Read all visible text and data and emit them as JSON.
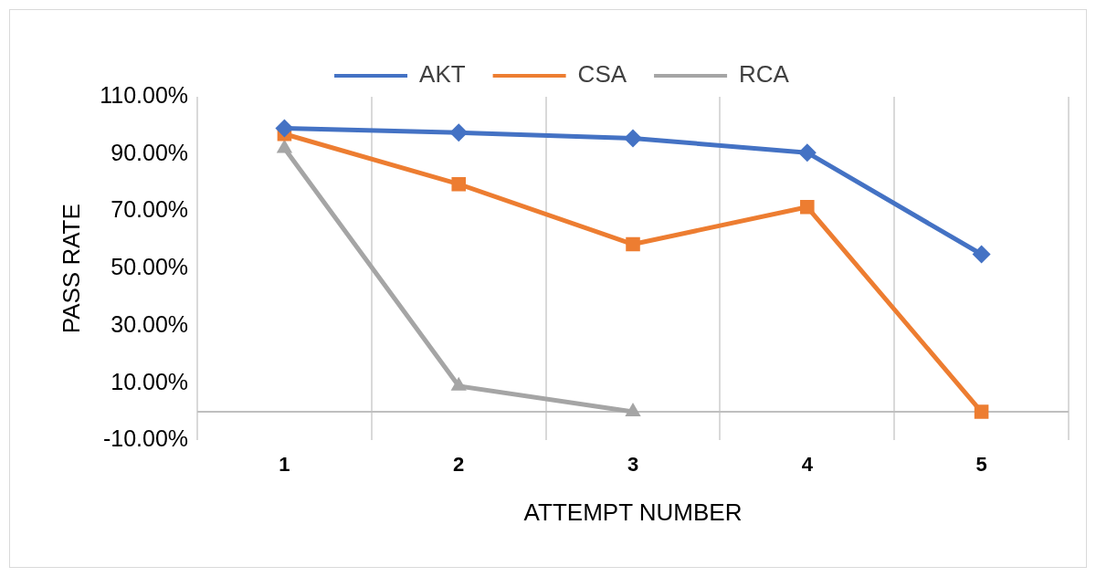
{
  "chart_data": {
    "type": "line",
    "xlabel": "ATTEMPT NUMBER",
    "ylabel": "PASS RATE",
    "categories": [
      "1",
      "2",
      "3",
      "4",
      "5"
    ],
    "series": [
      {
        "name": "AKT",
        "color": "#4472c4",
        "marker": "diamond",
        "values": [
          99,
          97.5,
          95.5,
          90.5,
          55
        ]
      },
      {
        "name": "CSA",
        "color": "#ed7d31",
        "marker": "square",
        "values": [
          97,
          79.5,
          58.5,
          71.5,
          0
        ]
      },
      {
        "name": "RCA",
        "color": "#a5a5a5",
        "marker": "triangle",
        "values": [
          92,
          9,
          0,
          null,
          null
        ]
      }
    ],
    "ylim": [
      -10,
      110
    ],
    "yticks": [
      {
        "value": -10,
        "label": "-10.00%"
      },
      {
        "value": 10,
        "label": "10.00%"
      },
      {
        "value": 30,
        "label": "30.00%"
      },
      {
        "value": 50,
        "label": "50.00%"
      },
      {
        "value": 70,
        "label": "70.00%"
      },
      {
        "value": 90,
        "label": "90.00%"
      },
      {
        "value": 110,
        "label": "110.00%"
      }
    ],
    "grid": "x",
    "legend": "top",
    "line_style": "solid"
  }
}
